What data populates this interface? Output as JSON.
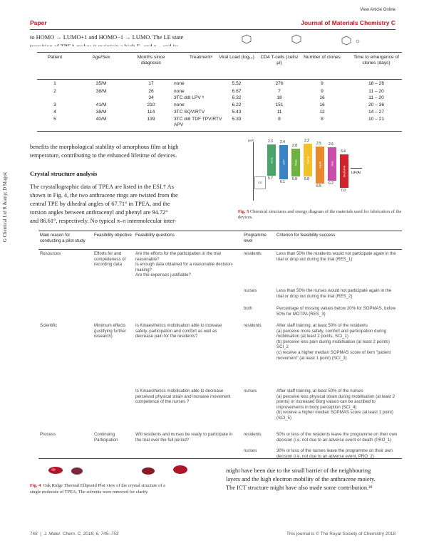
{
  "header": {
    "view_link": "View Article Online",
    "section": "Paper",
    "journal": "Journal of Materials Chemistry C"
  },
  "side_text": "G Chemical Ltd R &amp; D Magok",
  "top_text": {
    "line1": "to HOMO → LUMO+1 and HOMO−1 → LUMO. The LE state",
    "line2": "transition of TPEA makes it maintain a high Eₜ and η... and its"
  },
  "table1": {
    "headers": [
      "Patient",
      "Age/Sex",
      "Months since diagnosis",
      "Treatmentᵃ",
      "Viral Load (log₁₀)",
      "CD4 T-cells (cells/μl)",
      "Number of clones",
      "Time to emergence of clones (days)"
    ],
    "rows": [
      [
        "1",
        "35/M",
        "17",
        "none",
        "5.52",
        "276",
        "9",
        "18 – 26"
      ],
      [
        "2",
        "38/M",
        "26",
        "none",
        "6.67",
        "7",
        "9",
        "11 – 20"
      ],
      [
        "",
        "",
        "34",
        "3TC ddI LPV ᵇ",
        "6.32",
        "18",
        "16",
        "11 – 20"
      ],
      [
        "3",
        "41/M",
        "210",
        "none",
        "6.22",
        "151",
        "16",
        "20 – 36"
      ],
      [
        "4",
        "38/M",
        "114",
        "3TC SQV/RTV",
        "5.43",
        "11",
        "12",
        "14 – 27"
      ],
      [
        "5",
        "40/M",
        "139",
        "3TC ddI TDF TPV/RTV APV",
        "5.33",
        "8",
        "8",
        "10 – 21"
      ]
    ]
  },
  "left_para1": [
    "benefits the morphological stability of amorphous film at high",
    "temperature, contributing to the enhanced lifetime of devices."
  ],
  "crystal_heading": "Crystal structure analysis",
  "crystal_para": [
    "The crystallographic data of TPEA are listed in the ESI.† As",
    "shown in Fig. 4, the two anthracene rings are twisted from the",
    "central TPE by dihedral angles of 67.71° in TPEA, and the",
    "torsion angles between anthracenyl and phenyl are 94.72°",
    "and 86.61°, respectively. No typical π–π intermolecular inter-"
  ],
  "fig5": {
    "axis_label": "(eV)",
    "ito": "ITO",
    "cathode": "LiF/Al",
    "bars": [
      {
        "name": "TCTA",
        "color": "#4aa56a",
        "top": "2.3",
        "bottom": "5.7"
      },
      {
        "name": "mCP",
        "color": "#3a82c4",
        "top": "2.4",
        "bottom": "6.1"
      },
      {
        "name": "TPEA",
        "color": "#6db33f",
        "top": "2.8",
        "bottom": "5.8"
      },
      {
        "name": "BCPO",
        "color": "#f2c22e",
        "top": "2.2",
        "bottom": "5.8"
      },
      {
        "name": "DPPS",
        "color": "#e88a2c",
        "top": "2.5",
        "bottom": "6.5"
      },
      {
        "name": "TPBi",
        "color": "#c74dab",
        "top": "2.6",
        "bottom": "6.2"
      },
      {
        "name": "BmPyPhB",
        "color": "#d2232a",
        "top": "3.4",
        "bottom": "7.0"
      }
    ],
    "caption_label": "Fig. 5",
    "caption": "Chemical structures and energy diagram of the materials used for fabrication of the devices."
  },
  "table2": {
    "headers": [
      "Main reason for conducting a pilot study",
      "Feasibility objective",
      "Feasibility questions",
      "Programme level",
      "Criterion for feasibility success"
    ],
    "rows": [
      {
        "reason": "Resources",
        "objective": "Efforts for and completeness of recording data",
        "questions": "Are the efforts for the participation in the trial reasonable?\nIs enough data obtained for a reasonable decision-making?\nAre the expenses justifiable?",
        "level": "residents",
        "criterion": "Less than 50% the residents would not participate again in the trial or drop out during the trial (RES_1)"
      },
      {
        "reason": "",
        "objective": "",
        "questions": "",
        "level": "nurses",
        "criterion": "Less than 50% the nurses would not participate again in the trial or drop out during the trial (RES_2)"
      },
      {
        "reason": "",
        "objective": "",
        "questions": "",
        "level": "both",
        "criterion": "Percentage of missing values below 20% for SOPMAS, below 50% for MOTPA (RES_3)"
      },
      {
        "reason": "Scientific",
        "objective": "Minimum effects (justifying further research)",
        "questions": "Is Kinaesthetics mobilisation able to increase safety, participation and comfort as well as decrease pain for the residents?",
        "level": "residents",
        "criterion": "After staff training, at least 50% of the residents\n(a) perceive more safety, comfort and participation during mobilisation (at least 2 points, SCI_1)\n(b) perceive less pain during mobilisation (at least 2 points) SCI_2\n(c) receive a higher median SOPMAS score of item \"patient movement\" (at least 1 point) (SCI_3)"
      },
      {
        "reason": "",
        "objective": "",
        "questions": "Is Kinaesthetics mobilisation able to decrease perceived physical strain and increase movement competence of the nurses ?",
        "level": "nurses",
        "criterion": "After staff training, at least 50% of the nurses\n(a) perceive less physical strain during mobilisation (at least 2 points) or increased Borg values can be ascribed to improvements in body perception (SCI_4)\n(b) receive a higher median SOPMAS score (at least 1 point) (SCI_5)"
      },
      {
        "reason": "Process",
        "objective": "Continuing Participation",
        "questions": "Will residents and nurses be ready to participate in the trial over the full period?",
        "level": "residents",
        "criterion": "50% or less of the residents leave the programme on their own decision (i.e. not due to an adverse event or death (PRO_1)"
      },
      {
        "reason": "",
        "objective": "",
        "questions": "",
        "level": "nurses",
        "criterion": "30% or less of the nurses leave the programme on their own decision (i.e. not due to an adverse event, PRO_2)"
      }
    ]
  },
  "fig4": {
    "caption_label": "Fig. 4",
    "caption_line1": "Oak Ridge Thermal Ellipsoid Plot view of the crystal structure of a",
    "caption_line2": "single molecule of TPEA. The solvents were removed for clarity."
  },
  "right_para": [
    "might have been due to the small barrier of the neighbouring",
    "layers and the high electron mobility of the anthracene moiety.",
    "The ICT structure might have also made some contribution.²⁸"
  ],
  "footer": {
    "page": "748",
    "citation": "J. Mater. Chem. C, 2018, 6, 745–753",
    "copyright": "This journal is © The Royal Society of Chemistry 2018"
  }
}
